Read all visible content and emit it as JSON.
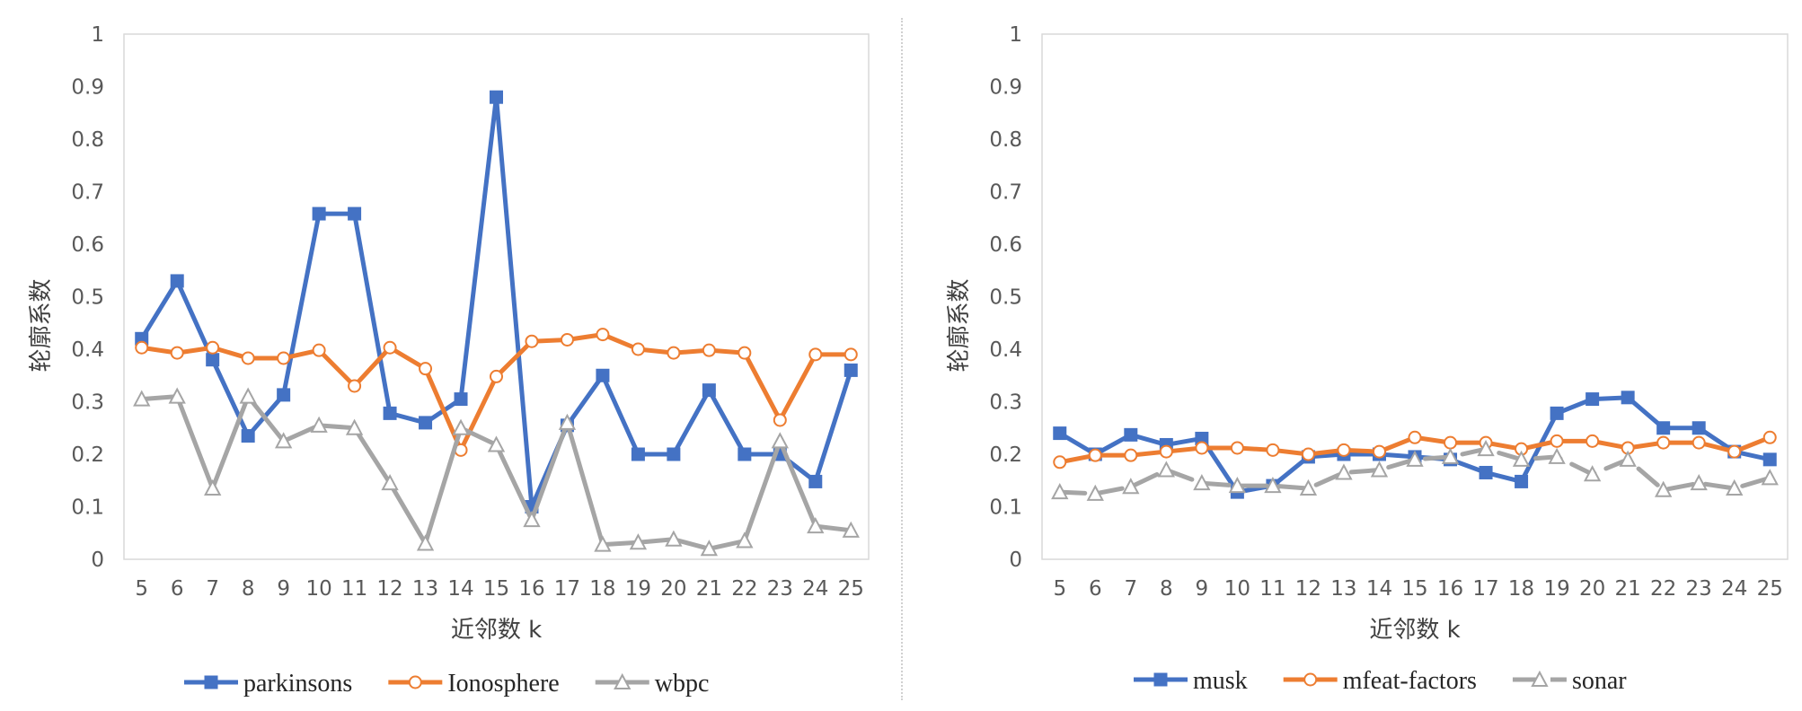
{
  "chart_data": [
    {
      "type": "line",
      "xlabel": "近邻数 k",
      "ylabel": "轮廓系数",
      "ylim": [
        0,
        1
      ],
      "yticks": [
        "0",
        "0.1",
        "0.2",
        "0.3",
        "0.4",
        "0.5",
        "0.6",
        "0.7",
        "0.8",
        "0.9",
        "1"
      ],
      "categories": [
        "5",
        "6",
        "7",
        "8",
        "9",
        "10",
        "11",
        "12",
        "13",
        "14",
        "15",
        "16",
        "17",
        "18",
        "19",
        "20",
        "21",
        "22",
        "23",
        "24",
        "25"
      ],
      "legend_position": "bottom",
      "grid": false,
      "series": [
        {
          "name": "parkinsons",
          "color": "#4472C4",
          "marker": "square",
          "dash": false,
          "values": [
            0.42,
            0.53,
            0.38,
            0.235,
            0.313,
            0.658,
            0.658,
            0.278,
            0.26,
            0.305,
            0.88,
            0.1,
            0.255,
            0.35,
            0.2,
            0.2,
            0.322,
            0.2,
            0.2,
            0.148,
            0.36
          ]
        },
        {
          "name": "Ionosphere",
          "color": "#ED7D31",
          "marker": "circle",
          "dash": false,
          "values": [
            0.403,
            0.393,
            0.403,
            0.383,
            0.383,
            0.398,
            0.33,
            0.403,
            0.363,
            0.208,
            0.348,
            0.415,
            0.418,
            0.428,
            0.4,
            0.393,
            0.398,
            0.393,
            0.265,
            0.39,
            0.39
          ]
        },
        {
          "name": "wbpc",
          "color": "#A5A5A5",
          "marker": "triangle",
          "dash": false,
          "values": [
            0.305,
            0.31,
            0.135,
            0.31,
            0.225,
            0.255,
            0.25,
            0.145,
            0.03,
            0.25,
            0.218,
            0.075,
            0.26,
            0.028,
            0.032,
            0.038,
            0.02,
            0.035,
            0.225,
            0.063,
            0.055
          ]
        }
      ]
    },
    {
      "type": "line",
      "xlabel": "近邻数 k",
      "ylabel": "轮廓系数",
      "ylim": [
        0,
        1
      ],
      "yticks": [
        "0",
        "0.1",
        "0.2",
        "0.3",
        "0.4",
        "0.5",
        "0.6",
        "0.7",
        "0.8",
        "0.9",
        "1"
      ],
      "categories": [
        "5",
        "6",
        "7",
        "8",
        "9",
        "10",
        "11",
        "12",
        "13",
        "14",
        "15",
        "16",
        "17",
        "18",
        "19",
        "20",
        "21",
        "22",
        "23",
        "24",
        "25"
      ],
      "legend_position": "bottom",
      "grid": false,
      "series": [
        {
          "name": "musk",
          "color": "#4472C4",
          "marker": "square",
          "dash": false,
          "values": [
            0.24,
            0.2,
            0.237,
            0.218,
            0.23,
            0.128,
            0.14,
            0.195,
            0.2,
            0.2,
            0.195,
            0.19,
            0.165,
            0.148,
            0.278,
            0.305,
            0.308,
            0.25,
            0.25,
            0.205,
            0.19
          ]
        },
        {
          "name": "mfeat-factors",
          "color": "#ED7D31",
          "marker": "circle",
          "dash": false,
          "values": [
            0.185,
            0.198,
            0.198,
            0.205,
            0.212,
            0.212,
            0.208,
            0.2,
            0.208,
            0.205,
            0.232,
            0.222,
            0.222,
            0.21,
            0.225,
            0.225,
            0.212,
            0.222,
            0.222,
            0.205,
            0.232
          ]
        },
        {
          "name": "sonar",
          "color": "#A5A5A5",
          "marker": "triangle",
          "dash": true,
          "values": [
            0.128,
            0.125,
            0.138,
            0.17,
            0.145,
            0.14,
            0.14,
            0.135,
            0.165,
            0.17,
            0.19,
            0.195,
            0.21,
            0.19,
            0.195,
            0.162,
            0.19,
            0.132,
            0.145,
            0.135,
            0.155
          ]
        }
      ]
    }
  ]
}
